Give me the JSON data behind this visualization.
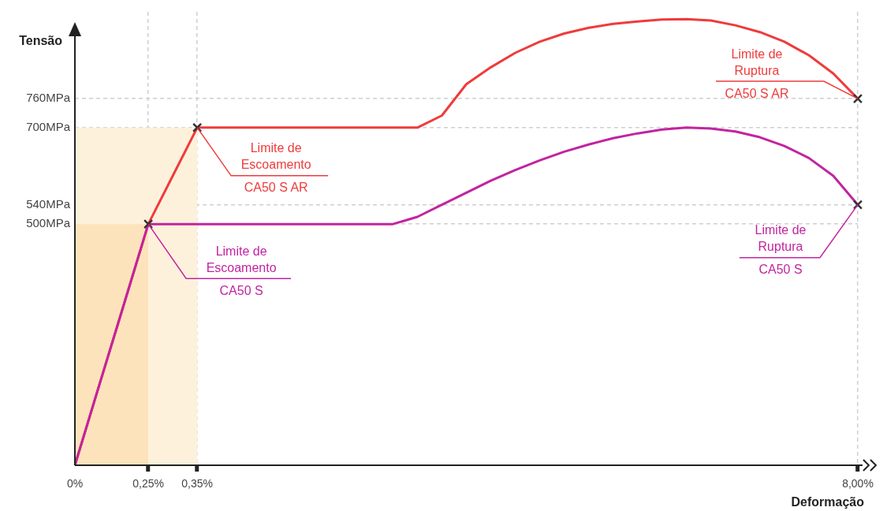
{
  "chart_data": {
    "type": "line",
    "xlabel": "Deformação",
    "ylabel": "Tensão",
    "categories": [
      "0%",
      null,
      null,
      "0,25%",
      null,
      "0,35%",
      null,
      null,
      null,
      null,
      null,
      null,
      null,
      null,
      null,
      null,
      null,
      null,
      null,
      null,
      null,
      null,
      null,
      null,
      null,
      null,
      null,
      null,
      null,
      null,
      null,
      null,
      "8,00%"
    ],
    "series": [
      {
        "type": "area",
        "color": "#fef1dc",
        "values": [
          700,
          700,
          700,
          700,
          700,
          700,
          null,
          null,
          null,
          null,
          null,
          null,
          null,
          null,
          null,
          null,
          null,
          null,
          null,
          null,
          null,
          null,
          null,
          null,
          null,
          null,
          null,
          null,
          null,
          null,
          null,
          null,
          null
        ]
      },
      {
        "type": "area",
        "color": "#fde3bb",
        "values": [
          500,
          500,
          500,
          500,
          null,
          null,
          null,
          null,
          null,
          null,
          null,
          null,
          null,
          null,
          null,
          null,
          null,
          null,
          null,
          null,
          null,
          null,
          null,
          null,
          null,
          null,
          null,
          null,
          null,
          null,
          null,
          null,
          null
        ]
      },
      {
        "color": "#c2249f",
        "values": [
          0,
          167,
          333,
          500,
          500,
          500,
          500,
          500,
          500,
          500,
          500,
          500,
          500,
          500,
          515,
          540,
          565,
          590,
          612,
          632,
          650,
          665,
          678,
          688,
          696,
          700,
          698,
          692,
          680,
          662,
          637,
          600,
          540
        ]
      },
      {
        "color": "#ef3b3b",
        "values": [
          0,
          167,
          333,
          500,
          600,
          700,
          700,
          700,
          700,
          700,
          700,
          700,
          700,
          700,
          700,
          725,
          790,
          825,
          855,
          878,
          895,
          907,
          915,
          920,
          924,
          925,
          922,
          912,
          898,
          878,
          850,
          812,
          760
        ]
      },
      {
        "type": "scatter",
        "marker": "cross",
        "color": "#333333",
        "values": [
          null,
          null,
          null,
          500,
          null,
          null,
          null,
          null,
          null,
          null,
          null,
          null,
          null,
          null,
          null,
          null,
          null,
          null,
          null,
          null,
          null,
          null,
          null,
          null,
          null,
          null,
          null,
          null,
          null,
          null,
          null,
          null,
          540
        ]
      },
      {
        "type": "scatter",
        "marker": "cross",
        "color": "#333333",
        "values": [
          null,
          null,
          null,
          null,
          null,
          700,
          null,
          null,
          null,
          null,
          null,
          null,
          null,
          null,
          null,
          null,
          null,
          null,
          null,
          null,
          null,
          null,
          null,
          null,
          null,
          null,
          null,
          null,
          null,
          null,
          null,
          null,
          760
        ]
      }
    ],
    "ylim": [
      0,
      940
    ],
    "yticks": [
      {
        "value": 500,
        "label": "500MPa"
      },
      {
        "value": 540,
        "label": "540MPa"
      },
      {
        "value": 700,
        "label": "700MPa"
      },
      {
        "value": 760,
        "label": "760MPa"
      }
    ],
    "grid": true,
    "legend": false,
    "annotations": [
      {
        "text": "Limite de\nEscoamento\nCA50 S AR",
        "x": "0,35%",
        "y": 700
      },
      {
        "text": "Limite de\nEscoamento\nCA50 S",
        "x": "0,25%",
        "y": 500
      },
      {
        "text": "Limite de\nRuptura\nCA50 S AR",
        "x": "8,00%",
        "y": 760
      },
      {
        "text": "Limite de\nRuptura\nCA50 S",
        "x": "8,00%",
        "y": 540
      }
    ]
  }
}
